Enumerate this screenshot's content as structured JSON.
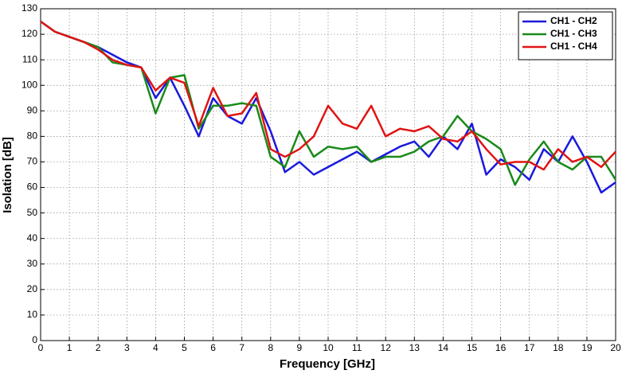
{
  "chart_data": {
    "type": "line",
    "xlabel": "Frequency [GHz]",
    "ylabel": "Isolation [dB]",
    "x": [
      0,
      0.5,
      1,
      1.5,
      2,
      2.5,
      3,
      3.5,
      4,
      4.5,
      5,
      5.5,
      6,
      6.5,
      7,
      7.5,
      8,
      8.5,
      9,
      9.5,
      10,
      10.5,
      11,
      11.5,
      12,
      12.5,
      13,
      13.5,
      14,
      14.5,
      15,
      15.5,
      16,
      16.5,
      17,
      17.5,
      18,
      18.5,
      19,
      19.5,
      20
    ],
    "series": [
      {
        "name": "CH1 - CH2",
        "color": "#1a1adc",
        "values": [
          125,
          121,
          119,
          117,
          115,
          112,
          109,
          107,
          95,
          103,
          92,
          80,
          95,
          88,
          85,
          95,
          82,
          66,
          70,
          65,
          68,
          71,
          74,
          70,
          73,
          76,
          78,
          72,
          80,
          75,
          85,
          65,
          71,
          68,
          63,
          75,
          70,
          80,
          70,
          58,
          62
        ]
      },
      {
        "name": "CH1 - CH3",
        "color": "#1a8a1a",
        "values": [
          125,
          121,
          119,
          117,
          115,
          109,
          108,
          107,
          89,
          103,
          104,
          83,
          92,
          92,
          93,
          92,
          72,
          68,
          82,
          72,
          76,
          75,
          76,
          70,
          72,
          72,
          74,
          78,
          80,
          88,
          82,
          79,
          75,
          61,
          71,
          78,
          70,
          67,
          72,
          72,
          63
        ]
      },
      {
        "name": "CH1 - CH4",
        "color": "#e01414",
        "values": [
          125,
          121,
          119,
          117,
          114,
          110,
          108,
          107,
          98,
          103,
          101,
          84,
          99,
          88,
          89,
          97,
          75,
          72,
          75,
          80,
          92,
          85,
          83,
          92,
          80,
          83,
          82,
          84,
          79,
          78,
          82,
          75,
          69,
          70,
          70,
          67,
          75,
          70,
          72,
          68,
          74
        ]
      }
    ],
    "xlim": [
      0,
      20
    ],
    "xticks": [
      0,
      1,
      2,
      3,
      4,
      5,
      6,
      7,
      8,
      9,
      10,
      11,
      12,
      13,
      14,
      15,
      16,
      17,
      18,
      19,
      20
    ],
    "ylim": [
      0,
      130
    ],
    "yticks": [
      0,
      10,
      20,
      30,
      40,
      50,
      60,
      70,
      80,
      90,
      100,
      110,
      120,
      130
    ],
    "grid": true,
    "legend": "upper right"
  }
}
